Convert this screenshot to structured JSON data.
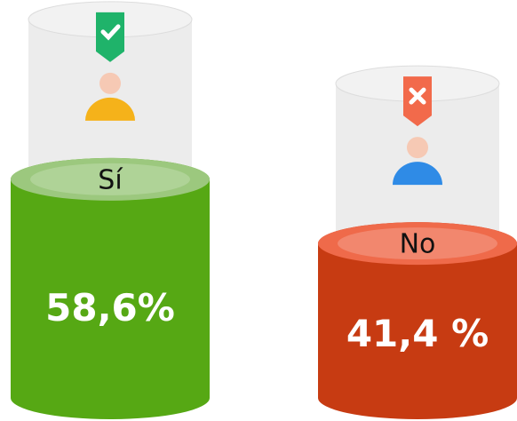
{
  "chart_data": {
    "type": "bar",
    "categories": [
      "Sí",
      "No"
    ],
    "values": [
      58.6,
      41.4
    ],
    "value_labels": [
      "58,6%",
      "41,4 %"
    ],
    "colors": [
      "#56a814",
      "#c73b12"
    ]
  }
}
